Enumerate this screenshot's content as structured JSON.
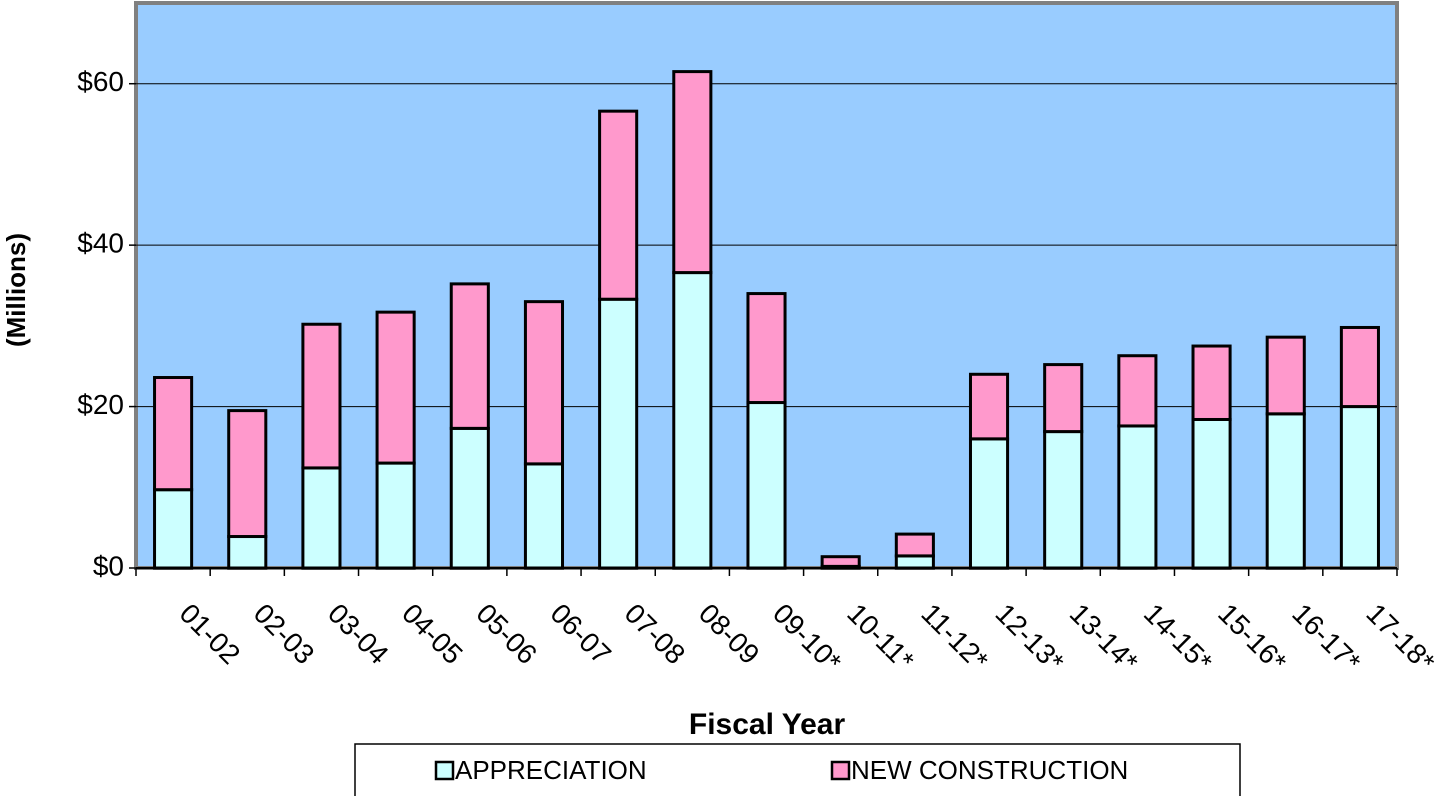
{
  "chart_data": {
    "type": "stacked_bar",
    "x_label": "Fiscal Year",
    "y_label": "(Millions)",
    "categories": [
      "01-02",
      "02-03",
      "03-04",
      "04-05",
      "05-06",
      "06-07",
      "07-08",
      "08-09",
      "09-10*",
      "10-11*",
      "11-12*",
      "12-13*",
      "13-14*",
      "14-15*",
      "15-16*",
      "16-17*",
      "17-18*"
    ],
    "series": [
      {
        "name": "APPRECIATION",
        "color": "#ccffff",
        "values": [
          9.7,
          3.9,
          12.4,
          13.0,
          17.3,
          12.9,
          33.3,
          36.6,
          20.5,
          0.2,
          1.5,
          16.0,
          16.9,
          17.6,
          18.4,
          19.1,
          20.0
        ]
      },
      {
        "name": "NEW CONSTRUCTION",
        "color": "#ff99cc",
        "values": [
          13.9,
          15.6,
          17.8,
          18.7,
          17.9,
          20.1,
          23.3,
          24.9,
          13.5,
          1.2,
          2.7,
          8.0,
          8.3,
          8.7,
          9.1,
          9.5,
          9.8
        ]
      }
    ],
    "ylim": [
      0,
      70
    ],
    "yticks": [
      {
        "value": 0,
        "label": "$0"
      },
      {
        "value": 20,
        "label": "$20"
      },
      {
        "value": 40,
        "label": "$40"
      },
      {
        "value": 60,
        "label": "$60"
      }
    ],
    "grid": true,
    "legend": "bottom"
  }
}
